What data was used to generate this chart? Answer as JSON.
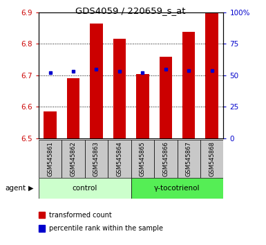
{
  "title": "GDS4059 / 220659_s_at",
  "samples": [
    "GSM545861",
    "GSM545862",
    "GSM545863",
    "GSM545864",
    "GSM545865",
    "GSM545866",
    "GSM545867",
    "GSM545868"
  ],
  "bar_values": [
    6.585,
    6.692,
    6.865,
    6.815,
    6.705,
    6.758,
    6.838,
    6.9
  ],
  "percentile_values": [
    52,
    53,
    55,
    53,
    52,
    55,
    54,
    54
  ],
  "ylim_left": [
    6.5,
    6.9
  ],
  "ylim_right": [
    0,
    100
  ],
  "yticks_left": [
    6.5,
    6.6,
    6.7,
    6.8,
    6.9
  ],
  "yticks_right": [
    0,
    25,
    50,
    75,
    100
  ],
  "ytick_labels_right": [
    "0",
    "25",
    "50",
    "75",
    "100%"
  ],
  "bar_color": "#cc0000",
  "dot_color": "#0000cc",
  "bar_bottom": 6.5,
  "groups": [
    {
      "label": "control",
      "indices": [
        0,
        1,
        2,
        3
      ],
      "color": "#ccffcc"
    },
    {
      "label": "γ-tocotrienol",
      "indices": [
        4,
        5,
        6,
        7
      ],
      "color": "#55ee55"
    }
  ],
  "agent_label": "agent",
  "legend_items": [
    {
      "color": "#cc0000",
      "label": "transformed count"
    },
    {
      "color": "#0000cc",
      "label": "percentile rank within the sample"
    }
  ],
  "tick_label_color_left": "#cc0000",
  "tick_label_color_right": "#0000cc",
  "sample_bg_color": "#c8c8c8",
  "fig_width": 3.85,
  "fig_height": 3.54,
  "dpi": 100
}
